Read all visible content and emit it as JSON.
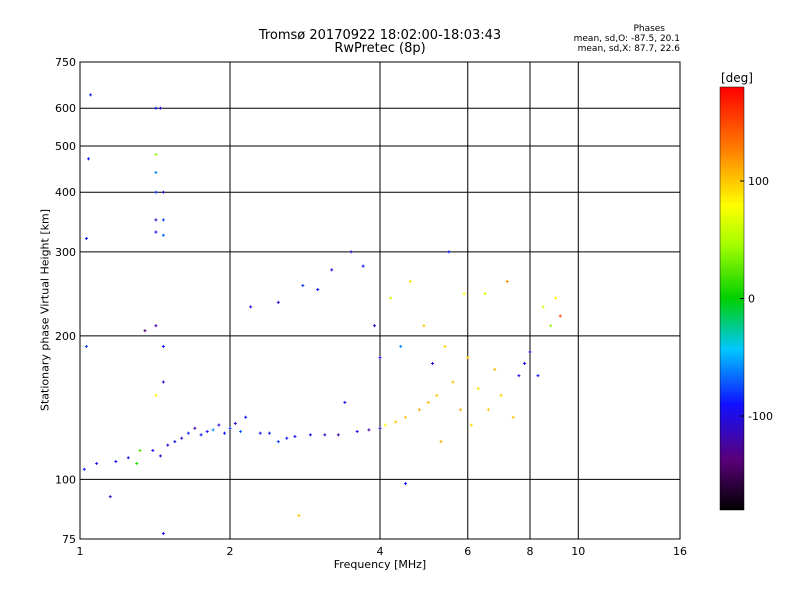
{
  "title": "Tromsø 20170922 18:02:00-18:03:43",
  "subtitle": "RwPretec (8p)",
  "legend_info": {
    "heading": "Phases",
    "o_mode": "mean, sd,O: -87.5, 20.1",
    "x_mode": "mean, sd,X:  87.7, 22.6"
  },
  "chart_data": {
    "type": "scatter",
    "xlabel": "Frequency [MHz]",
    "ylabel": "Stationary phase Virtual Height [km]",
    "x_scale": "log",
    "y_scale": "log",
    "xlim": [
      1,
      16
    ],
    "ylim": [
      75,
      750
    ],
    "x_ticks": [
      1,
      2,
      4,
      6,
      8,
      10,
      16
    ],
    "y_ticks": [
      75,
      100,
      200,
      300,
      400,
      500,
      600,
      750
    ],
    "grid": true,
    "colorbar": {
      "label": "[deg]",
      "range": [
        -180,
        180
      ],
      "ticks": [
        -100,
        0,
        100
      ],
      "colormap": "rainbow"
    },
    "series": [
      {
        "points": [
          [
            1.02,
            105,
            -90
          ],
          [
            1.03,
            190,
            -80
          ],
          [
            1.03,
            320,
            -95
          ],
          [
            1.04,
            470,
            -90
          ],
          [
            1.05,
            640,
            -85
          ],
          [
            1.08,
            108,
            -100
          ],
          [
            1.15,
            92,
            -110
          ],
          [
            1.18,
            109,
            -95
          ],
          [
            1.25,
            111,
            -100
          ],
          [
            1.3,
            108,
            10
          ],
          [
            1.32,
            115,
            20
          ],
          [
            1.35,
            205,
            -140
          ],
          [
            1.42,
            600,
            -90
          ],
          [
            1.42,
            480,
            40
          ],
          [
            1.42,
            440,
            -60
          ],
          [
            1.42,
            400,
            -80
          ],
          [
            1.42,
            350,
            -110
          ],
          [
            1.42,
            330,
            -90
          ],
          [
            1.42,
            150,
            80
          ],
          [
            1.42,
            210,
            -120
          ],
          [
            1.45,
            600,
            -100
          ],
          [
            1.47,
            400,
            -110
          ],
          [
            1.47,
            350,
            -80
          ],
          [
            1.47,
            325,
            -70
          ],
          [
            1.47,
            190,
            -90
          ],
          [
            1.47,
            160,
            -100
          ],
          [
            1.47,
            77,
            -95
          ],
          [
            1.4,
            115,
            -100
          ],
          [
            1.45,
            112,
            -105
          ],
          [
            1.5,
            118,
            -110
          ],
          [
            1.55,
            120,
            -95
          ],
          [
            1.6,
            122,
            -100
          ],
          [
            1.65,
            125,
            -85
          ],
          [
            1.7,
            128,
            -120
          ],
          [
            1.75,
            124,
            -90
          ],
          [
            1.8,
            126,
            -100
          ],
          [
            1.85,
            127,
            -60
          ],
          [
            1.9,
            130,
            -100
          ],
          [
            1.95,
            125,
            -90
          ],
          [
            2.0,
            128,
            -80
          ],
          [
            2.05,
            131,
            -110
          ],
          [
            2.1,
            126,
            -70
          ],
          [
            2.15,
            135,
            -90
          ],
          [
            2.2,
            230,
            -100
          ],
          [
            2.3,
            125,
            -95
          ],
          [
            2.4,
            125,
            -85
          ],
          [
            2.5,
            120,
            -80
          ],
          [
            2.5,
            235,
            -100
          ],
          [
            2.6,
            122,
            -90
          ],
          [
            2.7,
            123,
            -95
          ],
          [
            2.75,
            84,
            100
          ],
          [
            2.8,
            255,
            -80
          ],
          [
            2.9,
            124,
            -95
          ],
          [
            3.0,
            250,
            -90
          ],
          [
            3.1,
            124,
            -110
          ],
          [
            3.2,
            275,
            -100
          ],
          [
            3.3,
            124,
            -120
          ],
          [
            3.4,
            145,
            -95
          ],
          [
            3.5,
            300,
            -110
          ],
          [
            3.6,
            126,
            -100
          ],
          [
            3.7,
            280,
            -90
          ],
          [
            3.8,
            127,
            -120
          ],
          [
            3.9,
            210,
            -105
          ],
          [
            4.0,
            128,
            -110
          ],
          [
            4.0,
            180,
            -100
          ],
          [
            4.1,
            130,
            80
          ],
          [
            4.2,
            240,
            60
          ],
          [
            4.3,
            132,
            100
          ],
          [
            4.4,
            190,
            -60
          ],
          [
            4.5,
            98,
            -90
          ],
          [
            4.5,
            135,
            100
          ],
          [
            4.6,
            260,
            90
          ],
          [
            4.8,
            140,
            110
          ],
          [
            4.9,
            210,
            100
          ],
          [
            5.0,
            145,
            105
          ],
          [
            5.1,
            175,
            -100
          ],
          [
            5.2,
            150,
            100
          ],
          [
            5.3,
            120,
            110
          ],
          [
            5.4,
            190,
            95
          ],
          [
            5.5,
            300,
            -90
          ],
          [
            5.6,
            160,
            100
          ],
          [
            5.8,
            140,
            110
          ],
          [
            5.9,
            245,
            80
          ],
          [
            6.0,
            180,
            100
          ],
          [
            6.1,
            130,
            95
          ],
          [
            6.3,
            155,
            90
          ],
          [
            6.5,
            245,
            60
          ],
          [
            6.6,
            140,
            100
          ],
          [
            6.8,
            170,
            105
          ],
          [
            7.0,
            150,
            95
          ],
          [
            7.2,
            260,
            120
          ],
          [
            7.4,
            135,
            100
          ],
          [
            7.6,
            165,
            -100
          ],
          [
            7.8,
            175,
            -95
          ],
          [
            8.0,
            185,
            -100
          ],
          [
            8.3,
            165,
            -90
          ],
          [
            8.5,
            230,
            60
          ],
          [
            8.8,
            210,
            40
          ],
          [
            9.0,
            240,
            80
          ],
          [
            9.2,
            220,
            150
          ]
        ]
      }
    ]
  }
}
